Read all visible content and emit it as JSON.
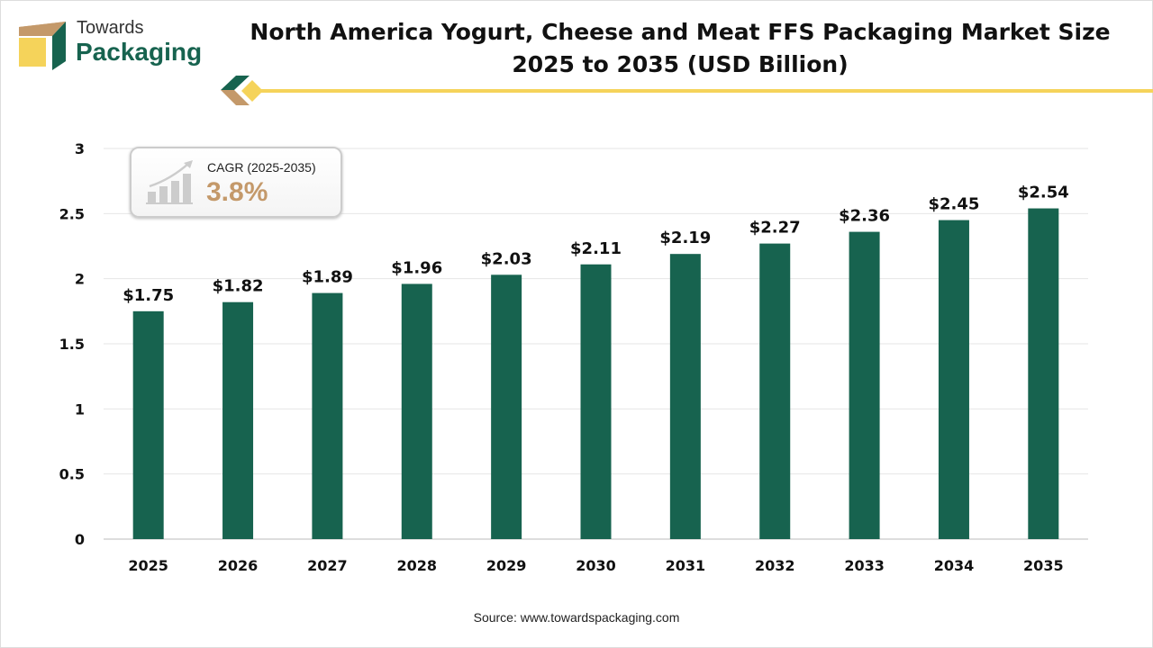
{
  "brand": {
    "line1": "Towards",
    "line2": "Packaging"
  },
  "title": {
    "line1": "North America Yogurt, Cheese and Meat FFS Packaging Market Size",
    "line2": "2025 to 2035 (USD Billion)"
  },
  "cagr": {
    "label": "CAGR (2025-2035)",
    "value": "3.8%",
    "icon": "growth-chart-icon"
  },
  "source": "Source: www.towardspackaging.com",
  "colors": {
    "bar": "#17634f",
    "accent": "#f5d35a",
    "brown": "#c4996a"
  },
  "chart_data": {
    "type": "bar",
    "categories": [
      "2025",
      "2026",
      "2027",
      "2028",
      "2029",
      "2030",
      "2031",
      "2032",
      "2033",
      "2034",
      "2035"
    ],
    "values": [
      1.75,
      1.82,
      1.89,
      1.96,
      2.03,
      2.11,
      2.19,
      2.27,
      2.36,
      2.45,
      2.54
    ],
    "labels": [
      "$1.75",
      "$1.82",
      "$1.89",
      "$1.96",
      "$2.03",
      "$2.11",
      "$2.19",
      "$2.27",
      "$2.36",
      "$2.45",
      "$2.54"
    ],
    "yticks": [
      "0",
      "0.5",
      "1",
      "1.5",
      "2",
      "2.5",
      "3"
    ],
    "ylim": [
      0,
      3
    ],
    "grid": true
  }
}
